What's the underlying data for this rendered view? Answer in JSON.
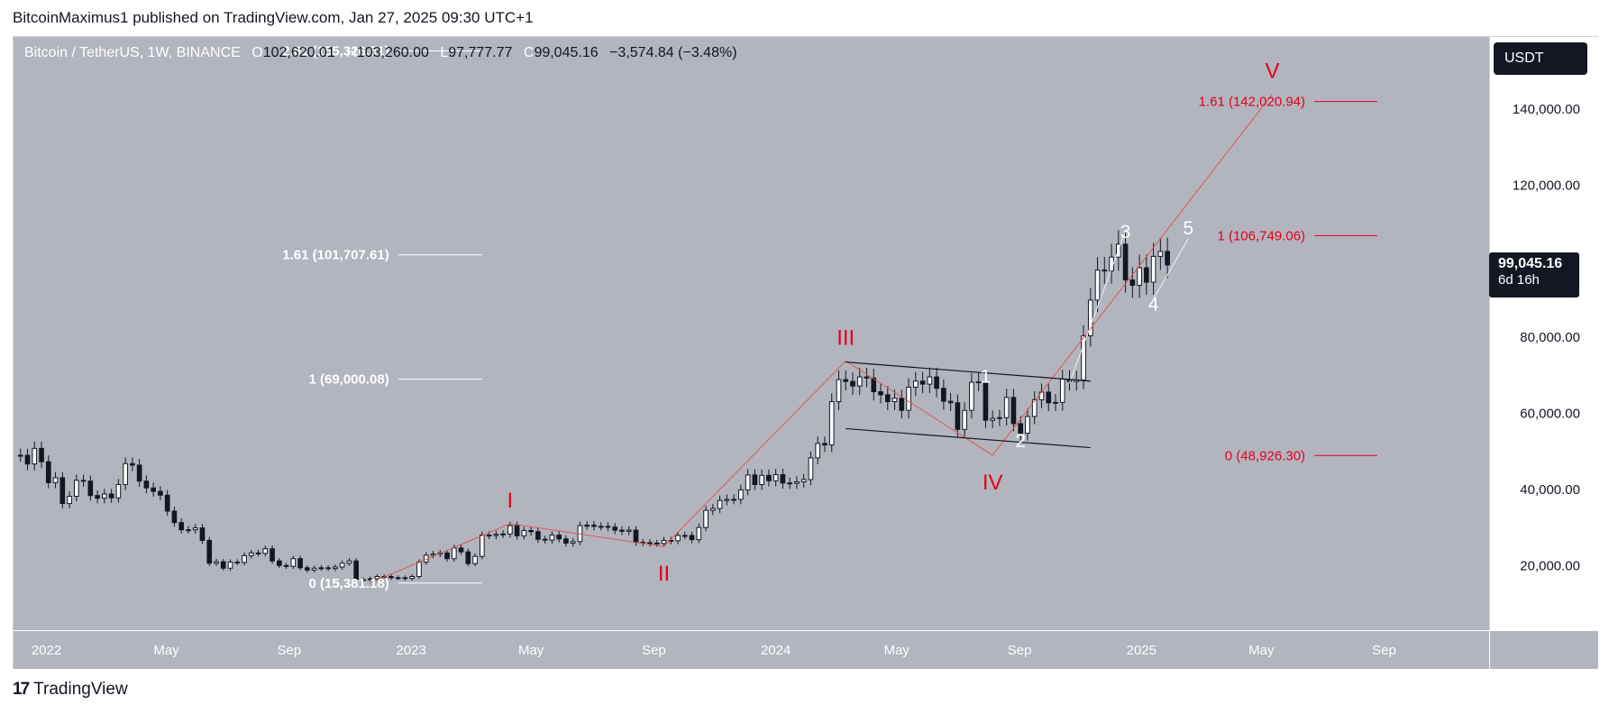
{
  "header": {
    "publisher": "BitcoinMaximus1 published on TradingView.com, Jan 27, 2025 09:30 UTC+1"
  },
  "legend": {
    "symbol": "Bitcoin / TetherUS, 1W, BINANCE",
    "o_key": "O",
    "o_val": "102,620.01",
    "h_key": "H",
    "h_val": "103,260.00",
    "l_key": "L",
    "l_val": "97,777.77",
    "c_key": "C",
    "c_val": "99,045.16",
    "change": "−3,574.84 (−3.48%)"
  },
  "currency_button": "USDT",
  "last_price": {
    "price": "99,045.16",
    "countdown": "6d 16h"
  },
  "footer": {
    "logo_mark": "17",
    "logo_text": "TradingView"
  },
  "colors": {
    "pane_bg": "#b2b5be",
    "white": "#ffffff",
    "black": "#131722",
    "red": "#e3001b"
  },
  "chart_data": {
    "type": "candlestick",
    "timeframe": "1W",
    "y_axis": {
      "ticks": [
        20000,
        40000,
        60000,
        80000,
        100000,
        120000,
        140000
      ],
      "tick_labels": [
        "20,000.00",
        "40,000.00",
        "60,000.00",
        "80,000.00",
        "",
        "120,000.00",
        "140,000.00"
      ],
      "ylim": [
        3000,
        159000
      ]
    },
    "x_axis": {
      "ticks": [
        "2022-01-01",
        "2022-05-01",
        "2022-09-01",
        "2023-01-01",
        "2023-05-01",
        "2023-09-01",
        "2024-01-01",
        "2024-05-01",
        "2024-09-01",
        "2025-01-01",
        "2025-05-01",
        "2025-09-01"
      ],
      "tick_labels": [
        "2022",
        "May",
        "Sep",
        "2023",
        "May",
        "Sep",
        "2024",
        "May",
        "Sep",
        "2025",
        "May",
        "Sep"
      ],
      "xlim": [
        "2021-11-29",
        "2025-12-15"
      ]
    },
    "candles_weekly_close": [
      [
        "2021-12-06",
        49000
      ],
      [
        "2021-12-13",
        46700
      ],
      [
        "2021-12-20",
        50800
      ],
      [
        "2021-12-27",
        47300
      ],
      [
        "2022-01-03",
        41800
      ],
      [
        "2022-01-10",
        43100
      ],
      [
        "2022-01-17",
        36300
      ],
      [
        "2022-01-24",
        38200
      ],
      [
        "2022-01-31",
        42400
      ],
      [
        "2022-02-07",
        42200
      ],
      [
        "2022-02-14",
        38400
      ],
      [
        "2022-02-21",
        37700
      ],
      [
        "2022-02-28",
        38800
      ],
      [
        "2022-03-07",
        37800
      ],
      [
        "2022-03-14",
        41300
      ],
      [
        "2022-03-21",
        46800
      ],
      [
        "2022-03-28",
        46400
      ],
      [
        "2022-04-04",
        42200
      ],
      [
        "2022-04-11",
        40400
      ],
      [
        "2022-04-18",
        39500
      ],
      [
        "2022-04-25",
        38500
      ],
      [
        "2022-05-02",
        34300
      ],
      [
        "2022-05-09",
        31300
      ],
      [
        "2022-05-16",
        29400
      ],
      [
        "2022-05-23",
        29400
      ],
      [
        "2022-05-30",
        29900
      ],
      [
        "2022-06-06",
        26600
      ],
      [
        "2022-06-13",
        20600
      ],
      [
        "2022-06-20",
        21000
      ],
      [
        "2022-06-27",
        19300
      ],
      [
        "2022-07-04",
        20900
      ],
      [
        "2022-07-11",
        20800
      ],
      [
        "2022-07-18",
        22600
      ],
      [
        "2022-07-25",
        23300
      ],
      [
        "2022-08-01",
        23200
      ],
      [
        "2022-08-08",
        24400
      ],
      [
        "2022-08-15",
        21200
      ],
      [
        "2022-08-22",
        20000
      ],
      [
        "2022-08-29",
        19800
      ],
      [
        "2022-09-05",
        21800
      ],
      [
        "2022-09-12",
        19400
      ],
      [
        "2022-09-19",
        18800
      ],
      [
        "2022-09-26",
        19300
      ],
      [
        "2022-10-03",
        19400
      ],
      [
        "2022-10-10",
        19200
      ],
      [
        "2022-10-17",
        19600
      ],
      [
        "2022-10-24",
        20600
      ],
      [
        "2022-10-31",
        21200
      ],
      [
        "2022-11-07",
        16300
      ],
      [
        "2022-11-14",
        16300
      ],
      [
        "2022-11-21",
        16500
      ],
      [
        "2022-11-28",
        17100
      ],
      [
        "2022-12-05",
        17100
      ],
      [
        "2022-12-12",
        16800
      ],
      [
        "2022-12-19",
        16800
      ],
      [
        "2022-12-26",
        16600
      ],
      [
        "2023-01-02",
        17100
      ],
      [
        "2023-01-09",
        20900
      ],
      [
        "2023-01-16",
        22700
      ],
      [
        "2023-01-23",
        23000
      ],
      [
        "2023-01-30",
        23300
      ],
      [
        "2023-02-06",
        21800
      ],
      [
        "2023-02-13",
        24600
      ],
      [
        "2023-02-20",
        23600
      ],
      [
        "2023-02-27",
        20500
      ],
      [
        "2023-03-06",
        22400
      ],
      [
        "2023-03-13",
        28000
      ],
      [
        "2023-03-20",
        27900
      ],
      [
        "2023-03-27",
        28200
      ],
      [
        "2023-04-03",
        28300
      ],
      [
        "2023-04-10",
        30500
      ],
      [
        "2023-04-17",
        27800
      ],
      [
        "2023-04-24",
        29200
      ],
      [
        "2023-05-01",
        28900
      ],
      [
        "2023-05-08",
        26900
      ],
      [
        "2023-05-15",
        26700
      ],
      [
        "2023-05-22",
        28000
      ],
      [
        "2023-05-29",
        27000
      ],
      [
        "2023-06-05",
        25900
      ],
      [
        "2023-06-12",
        26300
      ],
      [
        "2023-06-19",
        30500
      ],
      [
        "2023-06-26",
        30600
      ],
      [
        "2023-07-03",
        30300
      ],
      [
        "2023-07-10",
        30300
      ],
      [
        "2023-07-17",
        30100
      ],
      [
        "2023-07-24",
        29300
      ],
      [
        "2023-07-31",
        29000
      ],
      [
        "2023-08-07",
        29300
      ],
      [
        "2023-08-14",
        26100
      ],
      [
        "2023-08-21",
        26000
      ],
      [
        "2023-08-28",
        25900
      ],
      [
        "2023-09-04",
        25800
      ],
      [
        "2023-09-11",
        26600
      ],
      [
        "2023-09-18",
        26500
      ],
      [
        "2023-09-25",
        27900
      ],
      [
        "2023-10-02",
        27900
      ],
      [
        "2023-10-09",
        26800
      ],
      [
        "2023-10-16",
        30000
      ],
      [
        "2023-10-23",
        34500
      ],
      [
        "2023-10-30",
        35000
      ],
      [
        "2023-11-06",
        37100
      ],
      [
        "2023-11-13",
        37400
      ],
      [
        "2023-11-20",
        37400
      ],
      [
        "2023-11-27",
        39900
      ],
      [
        "2023-12-04",
        43800
      ],
      [
        "2023-12-11",
        41300
      ],
      [
        "2023-12-18",
        43700
      ],
      [
        "2023-12-25",
        42300
      ],
      [
        "2024-01-01",
        43900
      ],
      [
        "2024-01-08",
        41700
      ],
      [
        "2024-01-15",
        41600
      ],
      [
        "2024-01-22",
        42000
      ],
      [
        "2024-01-29",
        42600
      ],
      [
        "2024-02-05",
        48300
      ],
      [
        "2024-02-12",
        52100
      ],
      [
        "2024-02-19",
        51700
      ],
      [
        "2024-02-26",
        63100
      ],
      [
        "2024-03-04",
        68900
      ],
      [
        "2024-03-11",
        68400
      ],
      [
        "2024-03-18",
        67200
      ],
      [
        "2024-03-25",
        69600
      ],
      [
        "2024-04-01",
        69300
      ],
      [
        "2024-04-08",
        65700
      ],
      [
        "2024-04-15",
        64900
      ],
      [
        "2024-04-22",
        63100
      ],
      [
        "2024-04-29",
        64000
      ],
      [
        "2024-05-06",
        60800
      ],
      [
        "2024-05-13",
        66900
      ],
      [
        "2024-05-20",
        68500
      ],
      [
        "2024-05-27",
        67700
      ],
      [
        "2024-06-03",
        69600
      ],
      [
        "2024-06-10",
        66600
      ],
      [
        "2024-06-17",
        63200
      ],
      [
        "2024-06-24",
        62800
      ],
      [
        "2024-07-01",
        55800
      ],
      [
        "2024-07-08",
        60800
      ],
      [
        "2024-07-15",
        68200
      ],
      [
        "2024-07-22",
        68300
      ],
      [
        "2024-07-29",
        58200
      ],
      [
        "2024-08-05",
        58700
      ],
      [
        "2024-08-12",
        58900
      ],
      [
        "2024-08-19",
        64200
      ],
      [
        "2024-08-26",
        57300
      ],
      [
        "2024-09-02",
        54800
      ],
      [
        "2024-09-09",
        59200
      ],
      [
        "2024-09-16",
        63600
      ],
      [
        "2024-09-23",
        65600
      ],
      [
        "2024-09-30",
        62800
      ],
      [
        "2024-10-07",
        62900
      ],
      [
        "2024-10-14",
        69000
      ],
      [
        "2024-10-21",
        68400
      ],
      [
        "2024-10-28",
        68800
      ],
      [
        "2024-11-04",
        80400
      ],
      [
        "2024-11-11",
        89800
      ],
      [
        "2024-11-18",
        97700
      ],
      [
        "2024-11-25",
        97500
      ],
      [
        "2024-12-02",
        101100
      ],
      [
        "2024-12-09",
        104500
      ],
      [
        "2024-12-16",
        95100
      ],
      [
        "2024-12-23",
        93700
      ],
      [
        "2024-12-30",
        98300
      ],
      [
        "2025-01-06",
        94500
      ],
      [
        "2025-01-13",
        101300
      ],
      [
        "2025-01-20",
        102600
      ],
      [
        "2025-01-27",
        99045
      ]
    ],
    "white_fib_levels": [
      {
        "label": "2.61 (155,326.51)",
        "value": 155326.51
      },
      {
        "label": "1.61 (101,707.61)",
        "value": 101707.61
      },
      {
        "label": "1 (69,000.08)",
        "value": 69000.08
      },
      {
        "label": "0 (15,381.18)",
        "value": 15381.18
      }
    ],
    "red_fib_levels": [
      {
        "label": "1.61 (142,020.94)",
        "value": 142020.94
      },
      {
        "label": "1 (106,749.06)",
        "value": 106749.06
      },
      {
        "label": "0 (48,926.30)",
        "value": 48926.3
      }
    ],
    "red_wave_labels": [
      {
        "label": "I",
        "date": "2023-04-10",
        "value": 31000
      },
      {
        "label": "II",
        "date": "2023-09-11",
        "value": 25000
      },
      {
        "label": "III",
        "date": "2024-03-11",
        "value": 73800
      },
      {
        "label": "IV",
        "date": "2024-08-05",
        "value": 49000
      },
      {
        "label": "V",
        "date": "2025-05-12",
        "value": 144000
      }
    ],
    "white_wave_labels": [
      {
        "label": "1",
        "date": "2024-07-29",
        "value": 70000
      },
      {
        "label": "2",
        "date": "2024-09-02",
        "value": 53000
      },
      {
        "label": "3",
        "date": "2024-12-16",
        "value": 108000
      },
      {
        "label": "4",
        "date": "2025-01-13",
        "value": 89000
      },
      {
        "label": "5",
        "date": "2025-02-17",
        "value": 109000
      }
    ]
  }
}
